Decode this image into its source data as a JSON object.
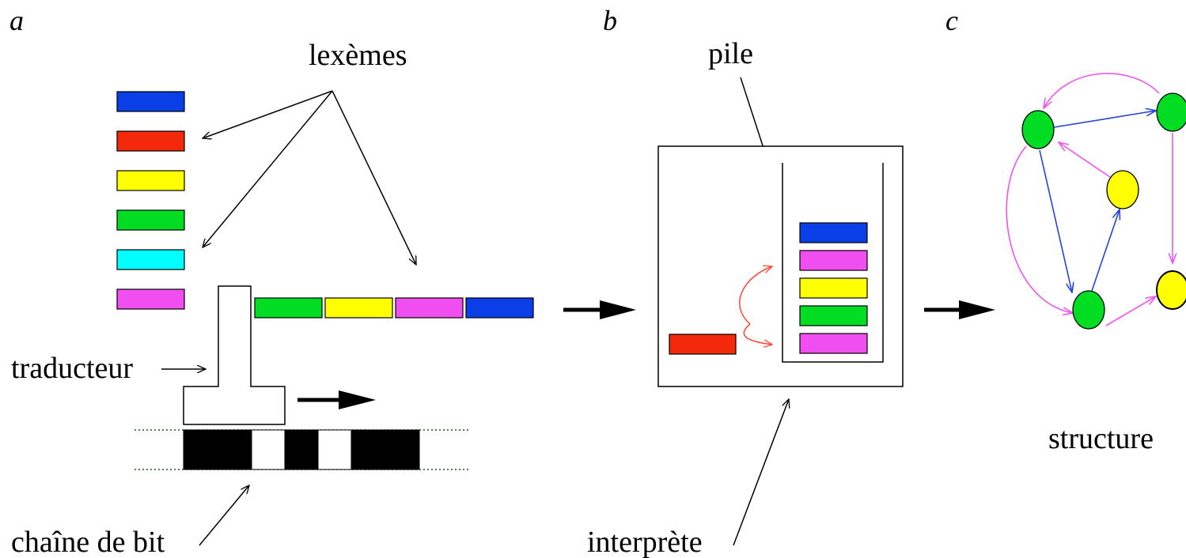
{
  "panels": {
    "a": "a",
    "b": "b",
    "c": "c"
  },
  "labels": {
    "lexemes": "lexèmes",
    "traducteur": "traducteur",
    "chaine": "chaîne de bit",
    "pile": "pile",
    "interprete": "interprète",
    "structure": "structure"
  },
  "colors": {
    "blue": "#0a3ee6",
    "red": "#f22a0a",
    "yellow": "#ffff00",
    "green": "#00dd22",
    "cyan": "#00ffff",
    "magenta": "#f04ef0",
    "edge_blue": "#2244dd",
    "edge_pink": "#ee55ee",
    "arc_red": "#ff4433"
  },
  "lexeme_palette": [
    "blue",
    "red",
    "yellow",
    "green",
    "cyan",
    "magenta"
  ],
  "token_stream": [
    "green",
    "yellow",
    "magenta",
    "blue"
  ],
  "stack": [
    "blue",
    "magenta",
    "yellow",
    "green",
    "magenta"
  ],
  "interpreter_token": "red",
  "bit_pattern": [
    1,
    0,
    1,
    0,
    1
  ]
}
